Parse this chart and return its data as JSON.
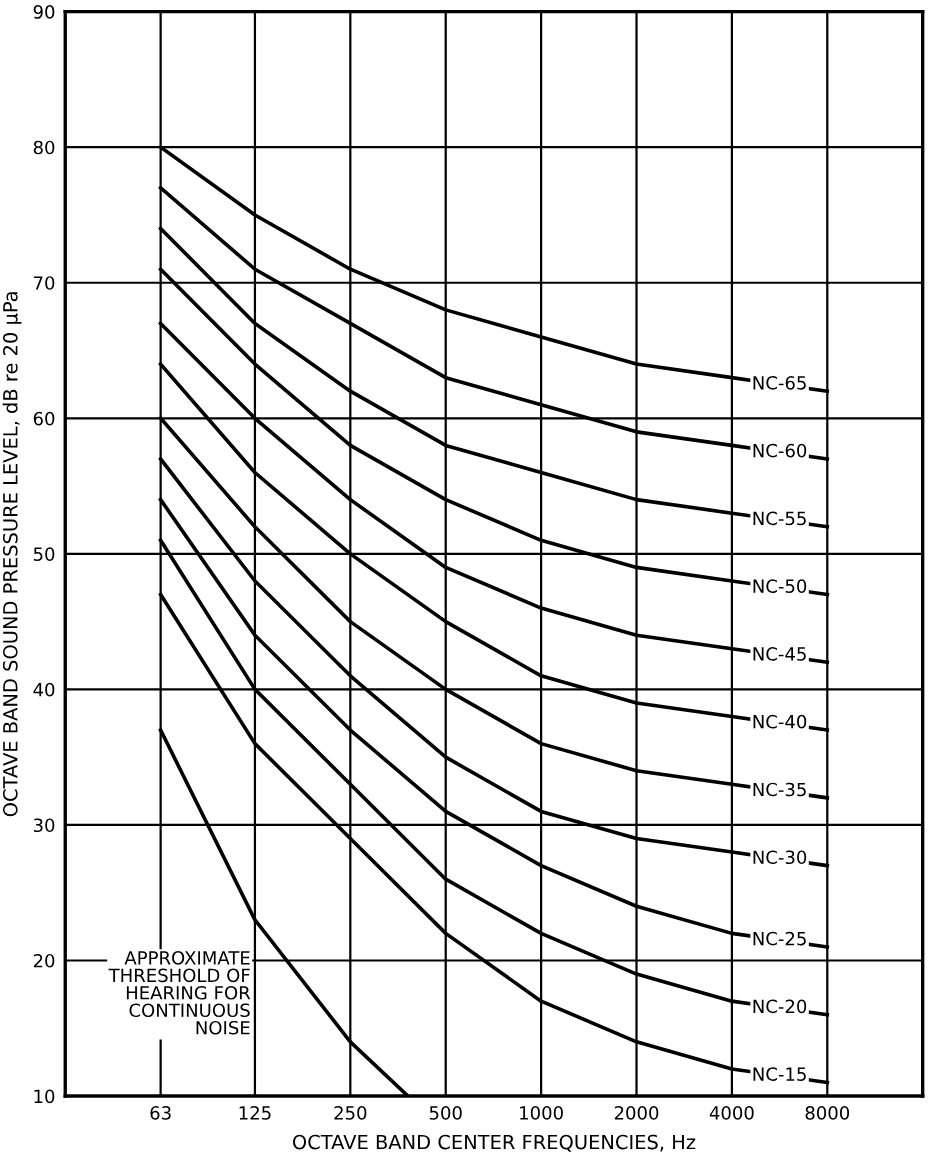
{
  "chart_data": {
    "type": "line",
    "xlabel": "OCTAVE BAND CENTER FREQUENCIES, Hz",
    "ylabel": "OCTAVE BAND SOUND PRESSURE LEVEL, dB re 20 μPa",
    "x": [
      63,
      125,
      250,
      500,
      1000,
      2000,
      4000,
      8000
    ],
    "log": "x",
    "xlim": [
      31.5,
      16000
    ],
    "xticks": [
      63,
      125,
      250,
      500,
      1000,
      2000,
      4000,
      8000
    ],
    "ylim": [
      10,
      90
    ],
    "yticks": [
      10,
      20,
      30,
      40,
      50,
      60,
      70,
      80,
      90
    ],
    "grid": true,
    "legend": false,
    "marker": "none",
    "line_style": "solid",
    "series": [
      {
        "name": "NC-65",
        "color": "#000000",
        "values": [
          80,
          75,
          71,
          68,
          66,
          64,
          63,
          62
        ]
      },
      {
        "name": "NC-60",
        "color": "#000000",
        "values": [
          77,
          71,
          67,
          63,
          61,
          59,
          58,
          57
        ]
      },
      {
        "name": "NC-55",
        "color": "#000000",
        "values": [
          74,
          67,
          62,
          58,
          56,
          54,
          53,
          52
        ]
      },
      {
        "name": "NC-50",
        "color": "#000000",
        "values": [
          71,
          64,
          58,
          54,
          51,
          49,
          48,
          47
        ]
      },
      {
        "name": "NC-45",
        "color": "#000000",
        "values": [
          67,
          60,
          54,
          49,
          46,
          44,
          43,
          42
        ]
      },
      {
        "name": "NC-40",
        "color": "#000000",
        "values": [
          64,
          56,
          50,
          45,
          41,
          39,
          38,
          37
        ]
      },
      {
        "name": "NC-35",
        "color": "#000000",
        "values": [
          60,
          52,
          45,
          40,
          36,
          34,
          33,
          32
        ]
      },
      {
        "name": "NC-30",
        "color": "#000000",
        "values": [
          57,
          48,
          41,
          35,
          31,
          29,
          28,
          27
        ]
      },
      {
        "name": "NC-25",
        "color": "#000000",
        "values": [
          54,
          44,
          37,
          31,
          27,
          24,
          22,
          21
        ]
      },
      {
        "name": "NC-20",
        "color": "#000000",
        "values": [
          51,
          40,
          33,
          26,
          22,
          19,
          17,
          16
        ]
      },
      {
        "name": "NC-15",
        "color": "#000000",
        "values": [
          47,
          36,
          29,
          22,
          17,
          14,
          12,
          11
        ]
      },
      {
        "name": "APPROXIMATE\nTHRESHOLD OF\nHEARING FOR\nCONTINUOUS\nNOISE",
        "color": "#000000",
        "x": [
          63,
          125,
          250,
          380
        ],
        "values": [
          37,
          23,
          14,
          10
        ]
      }
    ]
  }
}
